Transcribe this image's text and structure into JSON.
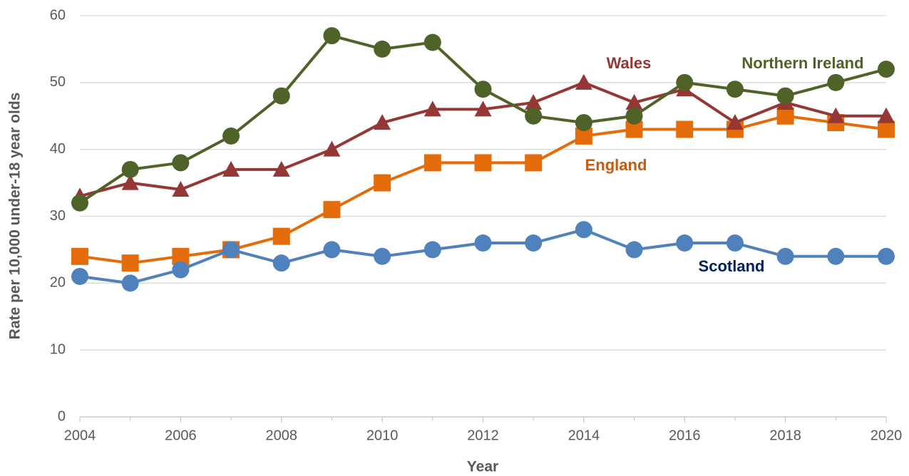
{
  "chart_data": {
    "type": "line",
    "x_label": "Year",
    "y_label": "Rate per 10,000 under-18 year olds",
    "x": [
      2004,
      2005,
      2006,
      2007,
      2008,
      2009,
      2010,
      2011,
      2012,
      2013,
      2014,
      2015,
      2016,
      2017,
      2018,
      2019,
      2020
    ],
    "xlim": [
      2004,
      2020
    ],
    "xticks": [
      2004,
      2006,
      2008,
      2010,
      2012,
      2014,
      2016,
      2018,
      2020
    ],
    "ylim": [
      0,
      60
    ],
    "yticks": [
      0,
      10,
      20,
      30,
      40,
      50,
      60
    ],
    "grid": true,
    "series": [
      {
        "name": "England",
        "color": "#e46c0a",
        "label_color": "#c55a11",
        "marker": "square",
        "values": [
          24,
          23,
          24,
          25,
          27,
          31,
          35,
          38,
          38,
          38,
          42,
          43,
          43,
          43,
          45,
          44,
          43
        ]
      },
      {
        "name": "Wales",
        "color": "#953735",
        "label_color": "#953735",
        "marker": "triangle",
        "values": [
          33,
          35,
          34,
          37,
          37,
          40,
          44,
          46,
          46,
          47,
          50,
          47,
          49,
          44,
          47,
          45,
          45
        ]
      },
      {
        "name": "Scotland",
        "color": "#4f81bd",
        "label_color": "#002060",
        "marker": "circle",
        "values": [
          21,
          20,
          22,
          25,
          23,
          25,
          24,
          25,
          26,
          26,
          28,
          25,
          26,
          26,
          24,
          24,
          24
        ]
      },
      {
        "name": "Northern Ireland",
        "color": "#4f6228",
        "label_color": "#4f6228",
        "marker": "circle",
        "values": [
          32,
          37,
          38,
          42,
          48,
          57,
          55,
          56,
          49,
          45,
          44,
          45,
          50,
          49,
          48,
          50,
          52
        ]
      }
    ]
  }
}
